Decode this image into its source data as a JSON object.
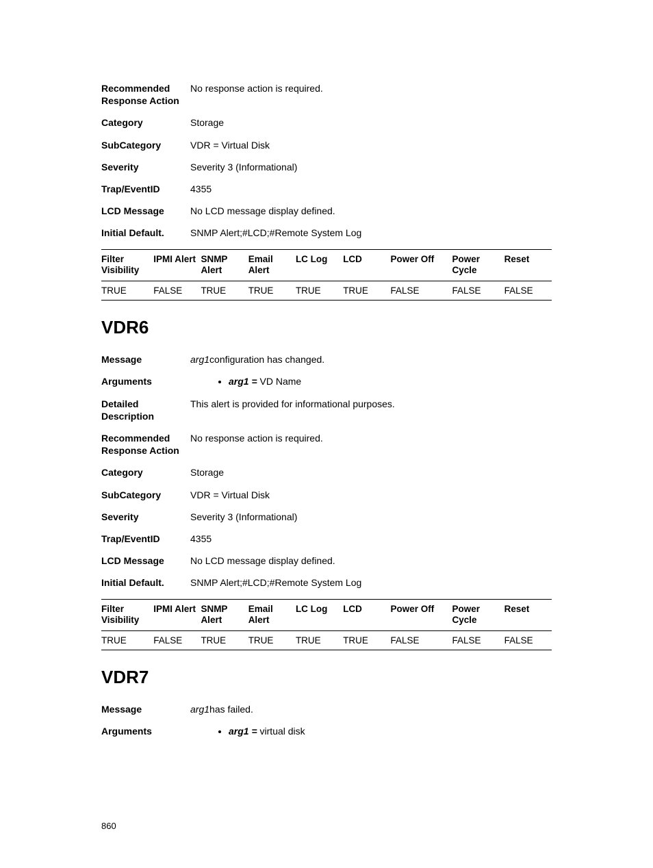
{
  "block1": {
    "fields": {
      "recommended_label": "Recommended Response Action",
      "recommended_value": "No response action is required.",
      "category_label": "Category",
      "category_value": "Storage",
      "subcategory_label": "SubCategory",
      "subcategory_value": "VDR = Virtual Disk",
      "severity_label": "Severity",
      "severity_value": "Severity 3 (Informational)",
      "trap_label": "Trap/EventID",
      "trap_value": "4355",
      "lcdmsg_label": "LCD Message",
      "lcdmsg_value": "No LCD message display defined.",
      "initial_label": "Initial Default.",
      "initial_value": "SNMP Alert;#LCD;#Remote System Log"
    },
    "table": {
      "headers": [
        "Filter Visibility",
        "IPMI Alert",
        "SNMP Alert",
        "Email Alert",
        "LC Log",
        "LCD",
        "Power Off",
        "Power Cycle",
        "Reset"
      ],
      "row": [
        "TRUE",
        "FALSE",
        "TRUE",
        "TRUE",
        "TRUE",
        "TRUE",
        "FALSE",
        "FALSE",
        "FALSE"
      ]
    }
  },
  "vdr6": {
    "heading": "VDR6",
    "message_label": "Message",
    "message_arg": "arg1",
    "message_rest": "configuration has changed.",
    "arguments_label": "Arguments",
    "arg_name": "arg1 =",
    "arg_desc": " VD Name",
    "detailed_label": "Detailed Description",
    "detailed_value": "This alert is provided for informational purposes.",
    "recommended_label": "Recommended Response Action",
    "recommended_value": "No response action is required.",
    "category_label": "Category",
    "category_value": "Storage",
    "subcategory_label": "SubCategory",
    "subcategory_value": "VDR = Virtual Disk",
    "severity_label": "Severity",
    "severity_value": "Severity 3 (Informational)",
    "trap_label": "Trap/EventID",
    "trap_value": "4355",
    "lcdmsg_label": "LCD Message",
    "lcdmsg_value": "No LCD message display defined.",
    "initial_label": "Initial Default.",
    "initial_value": "SNMP Alert;#LCD;#Remote System Log",
    "table": {
      "headers": [
        "Filter Visibility",
        "IPMI Alert",
        "SNMP Alert",
        "Email Alert",
        "LC Log",
        "LCD",
        "Power Off",
        "Power Cycle",
        "Reset"
      ],
      "row": [
        "TRUE",
        "FALSE",
        "TRUE",
        "TRUE",
        "TRUE",
        "TRUE",
        "FALSE",
        "FALSE",
        "FALSE"
      ]
    }
  },
  "vdr7": {
    "heading": "VDR7",
    "message_label": "Message",
    "message_arg": "arg1",
    "message_rest": "has failed.",
    "arguments_label": "Arguments",
    "arg_name": "arg1 =",
    "arg_desc": " virtual disk"
  },
  "page_number": "860",
  "style": {
    "col_widths_pct": [
      11,
      10,
      10,
      10,
      10,
      10,
      13,
      11,
      10
    ],
    "heading_fontsize": 26,
    "body_fontsize": 14,
    "table_fontsize": 13.5,
    "text_color": "#000000",
    "background_color": "#ffffff",
    "border_color": "#000000"
  }
}
